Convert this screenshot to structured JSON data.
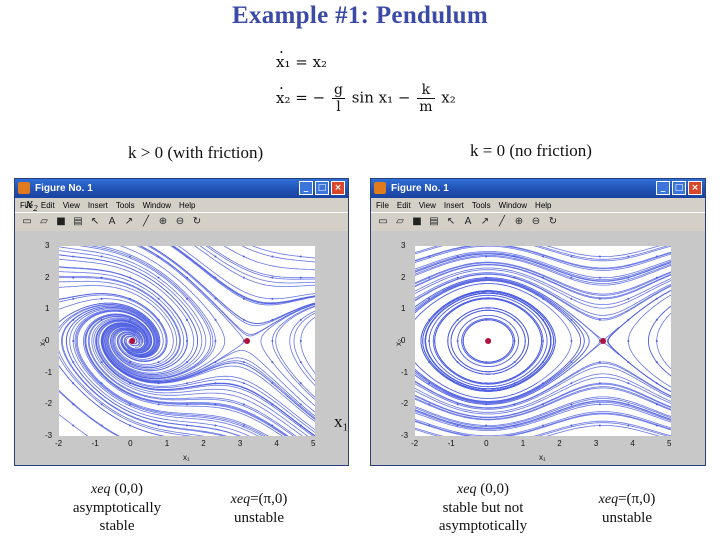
{
  "title": "Example #1: Pendulum",
  "equations": {
    "eq1": {
      "lhs": "x₁",
      "rhs": "= x₂"
    },
    "eq2": {
      "lhs": "x₂",
      "part1": "= −",
      "g_num": "g",
      "g_den": "l",
      "part2": "sin x₁ −",
      "k_num": "k",
      "k_den": "m",
      "part3": "x₂"
    }
  },
  "captions": {
    "left": "k > 0 (with friction)",
    "right": "k = 0 (no friction)"
  },
  "window": {
    "title": "Figure No. 1",
    "menu": [
      "File",
      "Edit",
      "View",
      "Insert",
      "Tools",
      "Window",
      "Help"
    ],
    "buttons": {
      "minimize": "_",
      "maximize": "□",
      "close": "×"
    }
  },
  "axis": {
    "x_ticks": [
      "-2",
      "-1",
      "0",
      "1",
      "2",
      "3",
      "4",
      "5"
    ],
    "y_ticks": [
      "3",
      "2",
      "1",
      "0",
      "-1",
      "-2",
      "-3"
    ],
    "xlabel": "x₁",
    "ylabel": "x₂"
  },
  "overlay": {
    "x1": "x₁",
    "x2": "x₂"
  },
  "notes": {
    "left_eq1": {
      "label": "xeq",
      "value": "(0,0)",
      "line2": "asymptotically",
      "line3": "stable"
    },
    "left_eq2": {
      "label": "xeq",
      "value": "=(π,0)",
      "line2": "unstable"
    },
    "right_eq1": {
      "label": "xeq",
      "value": "(0,0)",
      "line2": "stable but not",
      "line3": "asymptotically"
    },
    "right_eq2": {
      "label": "xeq",
      "value": "=(π,0)",
      "line2": "unstable"
    }
  },
  "colors": {
    "title": "#3a4aa6",
    "stream": "#4d5ee0",
    "equilibrium": "#b0103c"
  }
}
